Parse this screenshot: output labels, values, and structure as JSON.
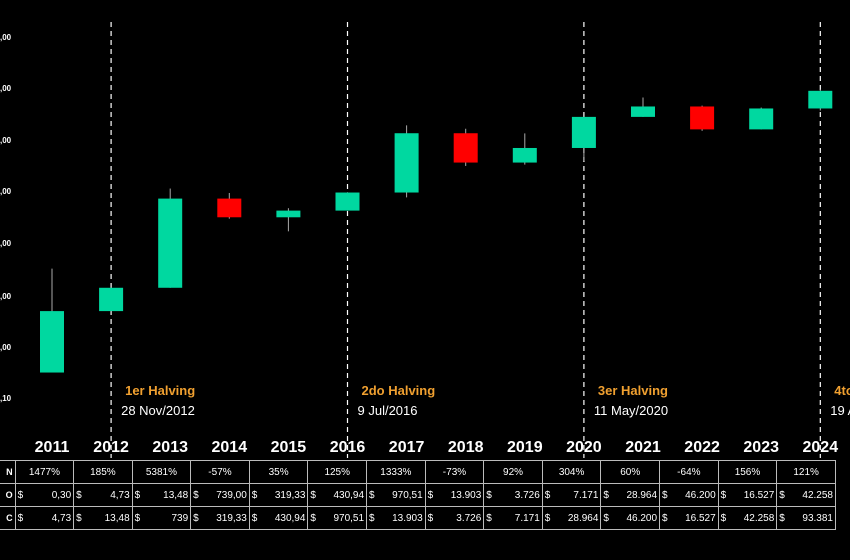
{
  "chart_data": {
    "type": "candlestick",
    "y_scale": "log",
    "y_tick_labels": [
      ",00",
      ",00",
      ",00",
      ",00",
      ",00",
      ",00",
      ",00",
      ",10"
    ],
    "categories": [
      "2011",
      "2012",
      "2013",
      "2014",
      "2015",
      "2016",
      "2017",
      "2018",
      "2019",
      "2020",
      "2021",
      "2022",
      "2023",
      "2024"
    ],
    "candles": [
      {
        "year": "2011",
        "open": 0.3,
        "close": 4.73,
        "high": 31.9,
        "low": 0.3
      },
      {
        "year": "2012",
        "open": 4.73,
        "close": 13.48,
        "high": 13.48,
        "low": 4.73
      },
      {
        "year": "2013",
        "open": 13.48,
        "close": 739,
        "high": 1160,
        "low": 13.48
      },
      {
        "year": "2014",
        "open": 739,
        "close": 319.33,
        "high": 950,
        "low": 300
      },
      {
        "year": "2015",
        "open": 319.33,
        "close": 430.94,
        "high": 480,
        "low": 170
      },
      {
        "year": "2016",
        "open": 430.94,
        "close": 970.51,
        "high": 980,
        "low": 430.94
      },
      {
        "year": "2017",
        "open": 970.51,
        "close": 13903,
        "high": 19800,
        "low": 780
      },
      {
        "year": "2018",
        "open": 13903,
        "close": 3726,
        "high": 17000,
        "low": 3200
      },
      {
        "year": "2019",
        "open": 3726,
        "close": 7171,
        "high": 13800,
        "low": 3400
      },
      {
        "year": "2020",
        "open": 7171,
        "close": 28964,
        "high": 29000,
        "low": 4000
      },
      {
        "year": "2021",
        "open": 28964,
        "close": 46200,
        "high": 69000,
        "low": 28964
      },
      {
        "year": "2022",
        "open": 46200,
        "close": 16527,
        "high": 48000,
        "low": 15500
      },
      {
        "year": "2023",
        "open": 16527,
        "close": 42258,
        "high": 44000,
        "low": 16500
      },
      {
        "year": "2024",
        "open": 42258,
        "close": 93381,
        "high": 99000,
        "low": 38500
      }
    ],
    "up_color": "#00d8a0",
    "down_color": "#ff0000",
    "halvings": [
      {
        "after_year": "2012",
        "title": "1er Halving",
        "date": "28 Nov/2012"
      },
      {
        "after_year": "2016",
        "title": "2do Halving",
        "date": "9 Jul/2016"
      },
      {
        "after_year": "2020",
        "title": "3er Halving",
        "date": "11 May/2020"
      },
      {
        "after_year": "2024",
        "title": "4to",
        "date": "19 A"
      }
    ],
    "table": {
      "row_labels": [
        "N",
        "O",
        "C"
      ],
      "change": [
        {
          "text": "1477%",
          "sign": "pos"
        },
        {
          "text": "185%",
          "sign": "pos"
        },
        {
          "text": "5381%",
          "sign": "pos"
        },
        {
          "text": "-57%",
          "sign": "neg"
        },
        {
          "text": "35%",
          "sign": "pos"
        },
        {
          "text": "125%",
          "sign": "pos"
        },
        {
          "text": "1333%",
          "sign": "pos"
        },
        {
          "text": "-73%",
          "sign": "neg"
        },
        {
          "text": "92%",
          "sign": "pos"
        },
        {
          "text": "304%",
          "sign": "pos"
        },
        {
          "text": "60%",
          "sign": "pos"
        },
        {
          "text": "-64%",
          "sign": "neg"
        },
        {
          "text": "156%",
          "sign": "pos"
        },
        {
          "text": "121%",
          "sign": "pos"
        }
      ],
      "currency": "$",
      "open": [
        "0,30",
        "4,73",
        "13,48",
        "739,00",
        "319,33",
        "430,94",
        "970,51",
        "13.903",
        "3.726",
        "7.171",
        "28.964",
        "46.200",
        "16.527",
        "42.258"
      ],
      "close": [
        "4,73",
        "13,48",
        "739",
        "319,33",
        "430,94",
        "970,51",
        "13.903",
        "3.726",
        "7.171",
        "28.964",
        "46.200",
        "16.527",
        "42.258",
        "93.381"
      ]
    }
  }
}
